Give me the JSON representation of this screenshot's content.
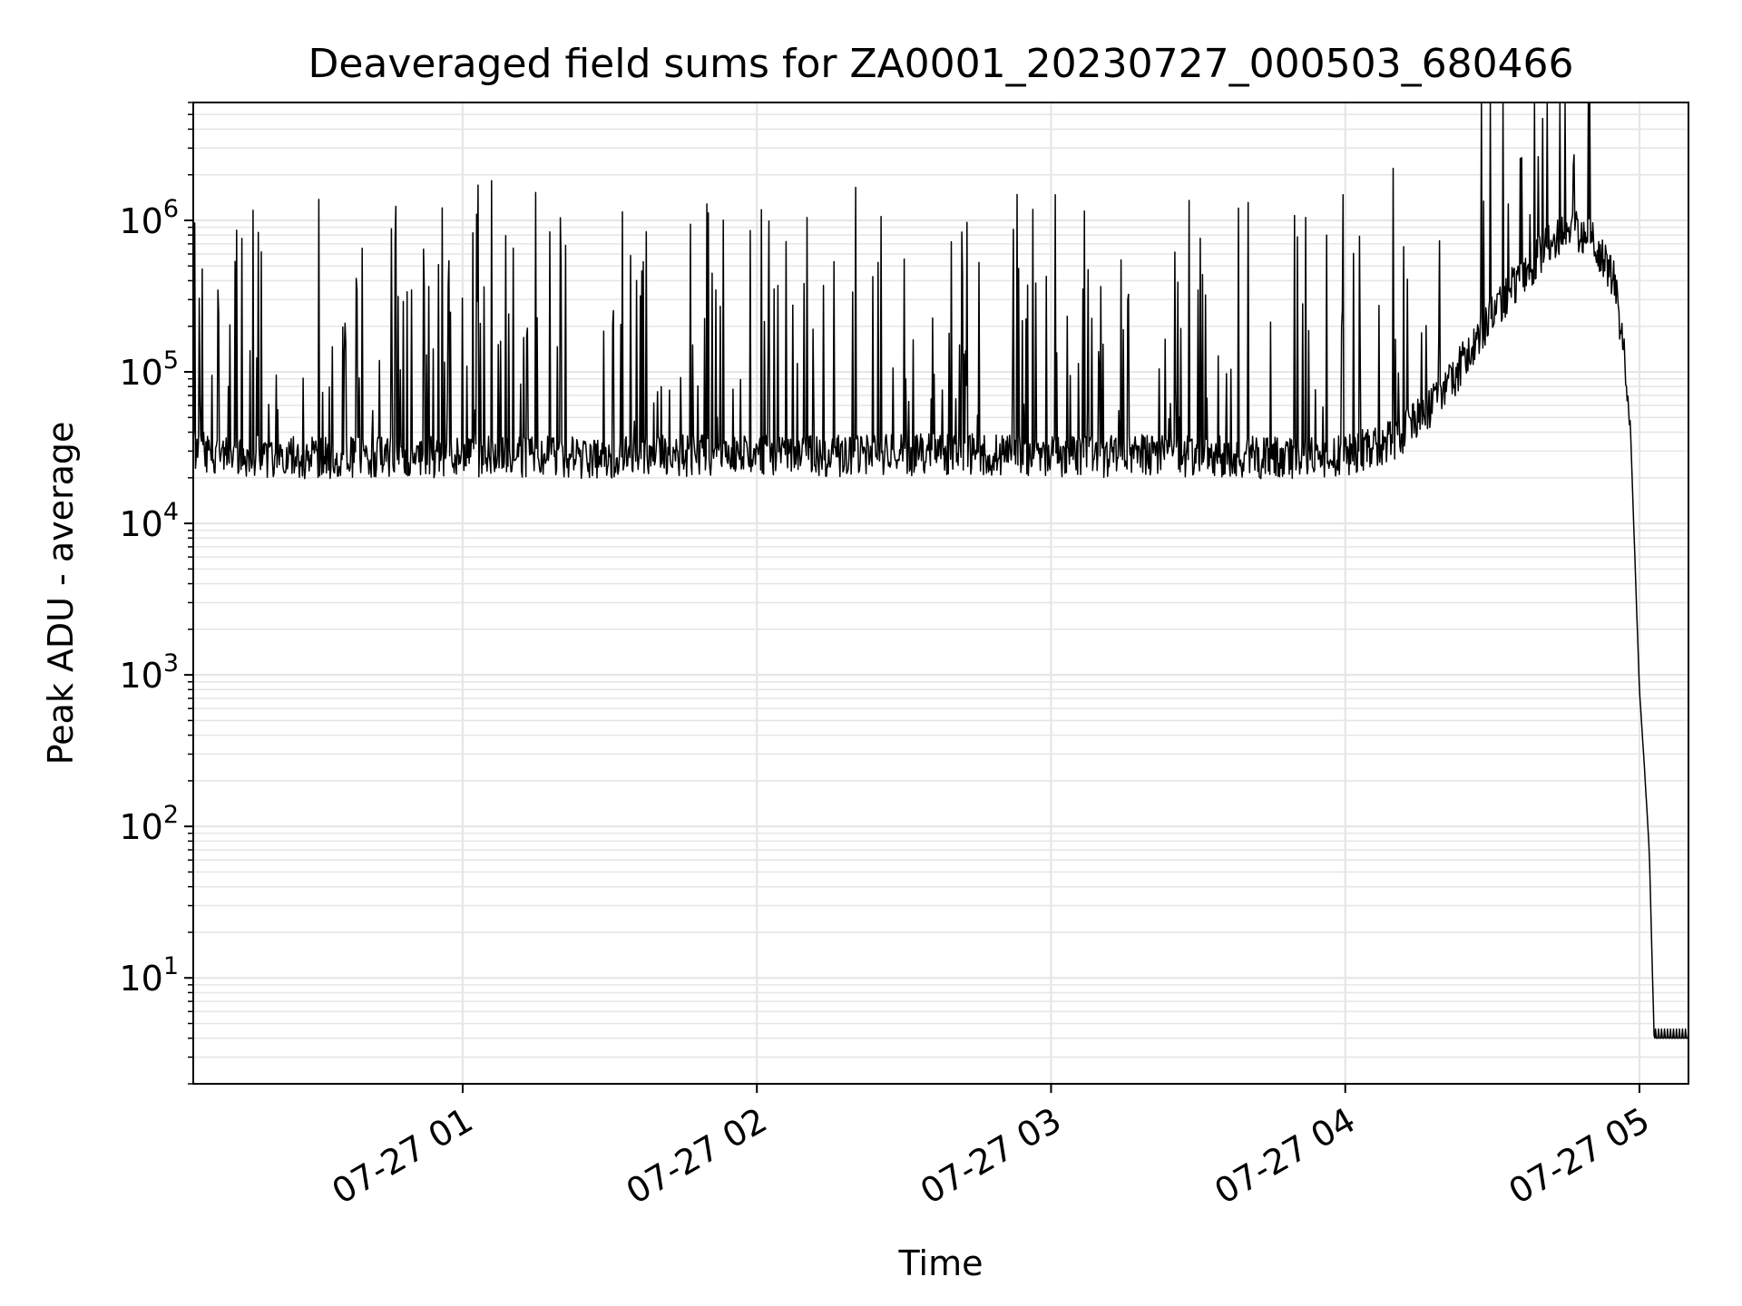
{
  "chart_data": {
    "type": "line",
    "title": "Deaveraged field sums for ZA0001_20230727_000503_680466",
    "xlabel": "Time",
    "ylabel": "Peak ADU - average",
    "x_scale": "time",
    "y_scale": "log",
    "xlim": [
      "2023-07-27 00:05:03",
      "2023-07-27 05:10:00"
    ],
    "ylim": [
      2,
      6000000
    ],
    "grid": true,
    "line_color": "#000000",
    "grid_color": "#e6e6e6",
    "x_ticks": [
      {
        "value": "2023-07-27 01:00",
        "label": "07-27 01"
      },
      {
        "value": "2023-07-27 02:00",
        "label": "07-27 02"
      },
      {
        "value": "2023-07-27 03:00",
        "label": "07-27 03"
      },
      {
        "value": "2023-07-27 04:00",
        "label": "07-27 04"
      },
      {
        "value": "2023-07-27 05:00",
        "label": "07-27 05"
      }
    ],
    "y_ticks": [
      {
        "value": 10,
        "base": "10",
        "exp": "1"
      },
      {
        "value": 100,
        "base": "10",
        "exp": "2"
      },
      {
        "value": 1000,
        "base": "10",
        "exp": "3"
      },
      {
        "value": 10000,
        "base": "10",
        "exp": "4"
      },
      {
        "value": 100000,
        "base": "10",
        "exp": "5"
      },
      {
        "value": 1000000,
        "base": "10",
        "exp": "6"
      }
    ],
    "series": [
      {
        "x": [
          "2023-07-27 00:05",
          "2023-07-27 00:15",
          "2023-07-27 00:30",
          "2023-07-27 00:45",
          "2023-07-27 01:00",
          "2023-07-27 01:15",
          "2023-07-27 01:30",
          "2023-07-27 01:45",
          "2023-07-27 02:00",
          "2023-07-27 02:15",
          "2023-07-27 02:30",
          "2023-07-27 02:45",
          "2023-07-27 03:00",
          "2023-07-27 03:15",
          "2023-07-27 03:30",
          "2023-07-27 03:45",
          "2023-07-27 04:00",
          "2023-07-27 04:10",
          "2023-07-27 04:20",
          "2023-07-27 04:30",
          "2023-07-27 04:40",
          "2023-07-27 04:45",
          "2023-07-27 04:50",
          "2023-07-27 04:55",
          "2023-07-27 04:58",
          "2023-07-27 05:00",
          "2023-07-27 05:01",
          "2023-07-27 05:02",
          "2023-07-27 05:03",
          "2023-07-27 05:05",
          "2023-07-27 05:10"
        ],
        "y": [
          30000,
          28000,
          27000,
          28000,
          27000,
          28000,
          27000,
          28000,
          29000,
          28000,
          28000,
          29000,
          27000,
          28000,
          28000,
          27000,
          28000,
          35000,
          70000,
          250000,
          600000,
          900000,
          800000,
          400000,
          60000,
          800,
          250,
          70,
          4,
          4,
          4
        ]
      }
    ]
  }
}
